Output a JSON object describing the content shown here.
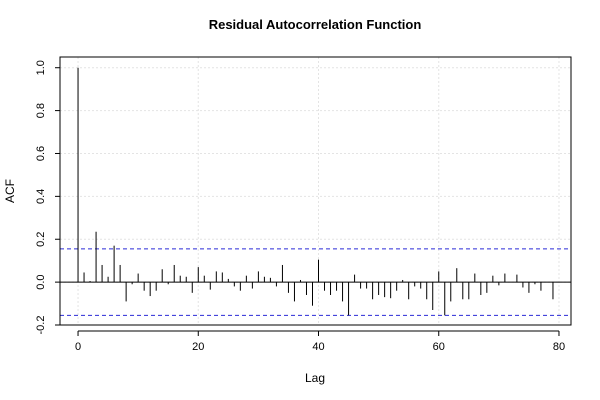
{
  "chart_data": {
    "type": "bar",
    "title": "Residual Autocorrelation Function",
    "xlabel": "Lag",
    "ylabel": "ACF",
    "xlim": [
      -3,
      82
    ],
    "ylim": [
      -0.2,
      1.05
    ],
    "xticks": [
      0,
      20,
      40,
      60,
      80
    ],
    "yticks": [
      -0.2,
      0.0,
      0.2,
      0.4,
      0.6,
      0.8,
      1.0
    ],
    "xtick_labels": [
      "0",
      "20",
      "40",
      "60",
      "80"
    ],
    "ytick_labels": [
      "-0.2",
      "0.0",
      "0.2",
      "0.4",
      "0.6",
      "0.8",
      "1.0"
    ],
    "grid": true,
    "confidence_bounds": [
      0.155,
      -0.155
    ],
    "colors": {
      "bars": "#000000",
      "confidence": "#2b2bd6",
      "grid": "#e4e4e4"
    },
    "lags": [
      0,
      1,
      2,
      3,
      4,
      5,
      6,
      7,
      8,
      9,
      10,
      11,
      12,
      13,
      14,
      15,
      16,
      17,
      18,
      19,
      20,
      21,
      22,
      23,
      24,
      25,
      26,
      27,
      28,
      29,
      30,
      31,
      32,
      33,
      34,
      35,
      36,
      37,
      38,
      39,
      40,
      41,
      42,
      43,
      44,
      45,
      46,
      47,
      48,
      49,
      50,
      51,
      52,
      53,
      54,
      55,
      56,
      57,
      58,
      59,
      60,
      61,
      62,
      63,
      64,
      65,
      66,
      67,
      68,
      69,
      70,
      71,
      72,
      73,
      74,
      75,
      76,
      77,
      78,
      79
    ],
    "values": [
      1.0,
      0.045,
      0.005,
      0.235,
      0.08,
      0.025,
      0.17,
      0.08,
      -0.09,
      -0.01,
      0.04,
      -0.04,
      -0.065,
      -0.04,
      0.06,
      -0.01,
      0.08,
      0.03,
      0.025,
      -0.05,
      0.07,
      0.03,
      -0.035,
      0.05,
      0.045,
      0.015,
      -0.02,
      -0.04,
      0.03,
      -0.03,
      0.05,
      0.025,
      0.02,
      -0.02,
      0.08,
      -0.05,
      -0.09,
      0.01,
      -0.06,
      -0.11,
      0.105,
      -0.04,
      -0.06,
      -0.04,
      -0.09,
      -0.155,
      0.035,
      -0.03,
      -0.03,
      -0.08,
      -0.06,
      -0.07,
      -0.075,
      -0.04,
      0.01,
      -0.08,
      -0.02,
      -0.03,
      -0.08,
      -0.13,
      0.05,
      -0.155,
      -0.09,
      0.065,
      -0.08,
      -0.08,
      0.04,
      -0.06,
      -0.05,
      0.03,
      -0.015,
      0.04,
      0.0,
      0.035,
      -0.025,
      -0.05,
      -0.01,
      -0.04,
      0.0,
      -0.08
    ]
  }
}
